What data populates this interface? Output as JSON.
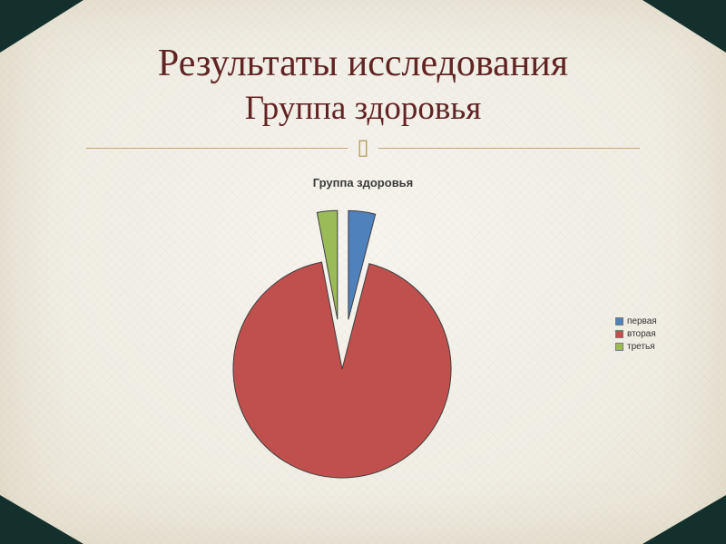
{
  "slide": {
    "title": "Результаты исследования",
    "subtitle": "Группа здоровья",
    "divider_glyph": "▯"
  },
  "chart_data": {
    "type": "pie",
    "title": "Группа здоровья",
    "labels": [
      "первая",
      "вторая",
      "третья"
    ],
    "values": [
      4,
      93,
      3
    ],
    "unit": "percent_estimated",
    "colors": [
      "#4f81bd",
      "#c0504d",
      "#9bbb59"
    ],
    "exploded": [
      true,
      false,
      true
    ],
    "start_angle_deg": 0,
    "direction": "clockwise",
    "legend_position": "right",
    "legend_entries": [
      "первая",
      "вторая",
      "третья"
    ]
  },
  "colors": {
    "background": "#f0ede3",
    "corner_decoration": "#14302c",
    "title_text": "#622423",
    "divider_line": "#c3a873",
    "chart_title_text": "#3b3b3b",
    "legend_text": "#333333",
    "pie_stroke": "#3f3f3f"
  }
}
